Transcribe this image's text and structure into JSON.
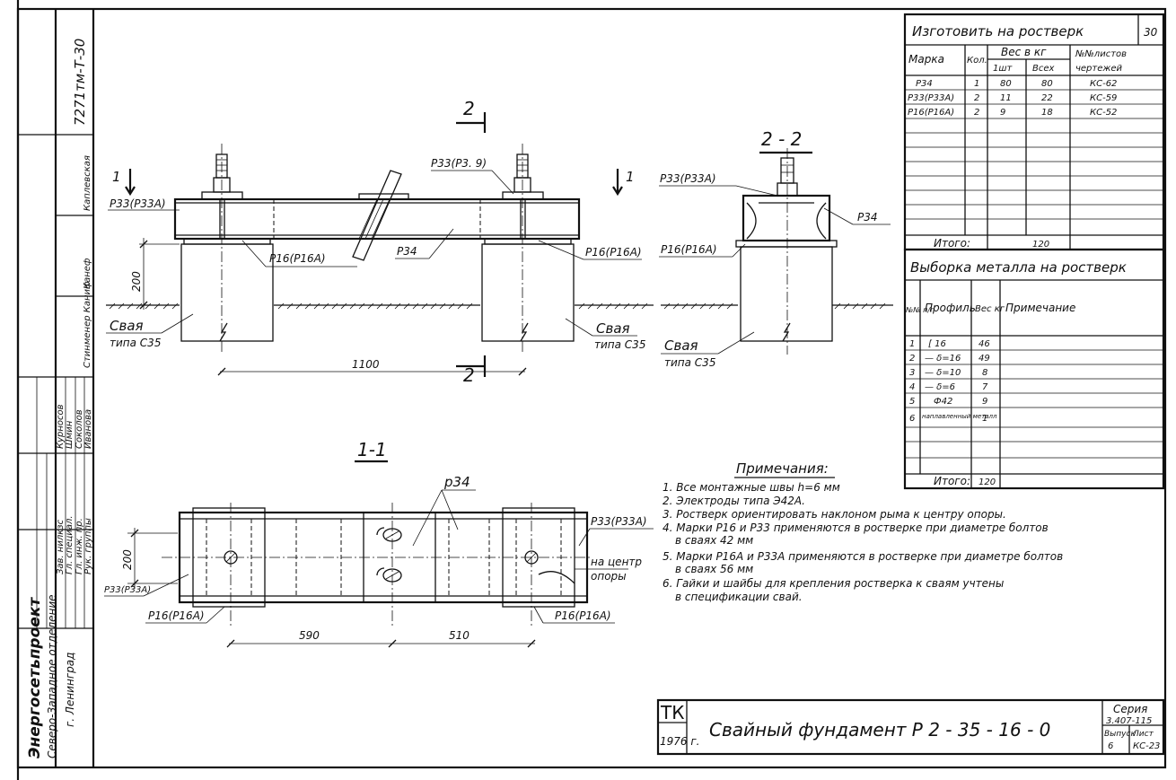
{
  "stamp": {
    "org": "Энергосетьпроект",
    "division": "Северо-Западное отделение",
    "city": "г. Ленинград",
    "archive_no": "7271тм-Т-30",
    "roles": [
      "Зав. нилкзс",
      "Гл. специал.",
      "Гл. инж. пр.",
      "Рук. группы"
    ],
    "names": [
      "Курносов",
      "Шмин",
      "Соколов",
      "Иванова"
    ],
    "vertical_names": [
      "Каплевская",
      "Канеф",
      "Стинменер Каниф"
    ]
  },
  "drawing": {
    "section_2_top": "2",
    "section_2_bottom": "2",
    "section_1_left": "1",
    "section_1_right": "1",
    "view_title_2_2": "2 - 2",
    "view_title_1_1": "1-1",
    "callouts": {
      "p33_left": "Р33(Р33А)",
      "p33_top": "Р33(Р3. 9)",
      "p16_mid": "Р16(Р16А)",
      "p34_mid": "Р34",
      "p16_right": "Р16(Р16А)",
      "pile_left": "Свая",
      "pile_left_type": "типа С35",
      "pile_right": "Свая",
      "pile_right_type": "типа С35",
      "p33_side": "Р33(Р33А)",
      "p34_side": "Р34",
      "p16_side": "Р16(Р16А)",
      "pile_side": "Свая",
      "pile_side_type": "типа С35",
      "p34_plan": "р34",
      "p33_plan_right": "Р33(Р33А)",
      "center_note": "на центр",
      "center_note2": "опоры",
      "p33_plan_left": "Р33(Р33А)",
      "p16_plan_left": "Р16(Р16А)",
      "p16_plan_right": "Р16(Р16А)"
    },
    "dims": {
      "h200": "200",
      "span1100": "1100",
      "plan200": "200",
      "d590": "590",
      "d510": "510"
    }
  },
  "table_parts": {
    "title": "Изготовить на ростверк",
    "sheet_no": "30",
    "headers": {
      "mark": "Марка",
      "qty": "Кол.",
      "weight": "Вес в кг",
      "w_one": "1шт",
      "w_all": "Всех",
      "sheets": "№№листов",
      "sheets2": "чертежей"
    },
    "rows": [
      {
        "mark": "Р34",
        "qty": "1",
        "w1": "80",
        "wall": "80",
        "sheet": "КС-62"
      },
      {
        "mark": "Р33(Р33А)",
        "qty": "2",
        "w1": "11",
        "wall": "22",
        "sheet": "КС-59"
      },
      {
        "mark": "Р16(Р16А)",
        "qty": "2",
        "w1": "9",
        "wall": "18",
        "sheet": "КС-52"
      }
    ],
    "total_label": "Итого:",
    "total": "120"
  },
  "table_metal": {
    "title": "Выборка металла на ростверк",
    "headers": {
      "no": "№№ п/п",
      "profile": "Профиль",
      "weight": "Вес кг",
      "note": "Примечание"
    },
    "rows": [
      {
        "no": "1",
        "profile": "[ 16",
        "weight": "46"
      },
      {
        "no": "2",
        "profile": "— δ=16",
        "weight": "49"
      },
      {
        "no": "3",
        "profile": "— δ=10",
        "weight": "8"
      },
      {
        "no": "4",
        "profile": "— δ=6",
        "weight": "7"
      },
      {
        "no": "5",
        "profile": "Ф42",
        "weight": "9"
      },
      {
        "no": "6",
        "profile": "наплавленный металл",
        "weight": "1"
      }
    ],
    "total_label": "Итого:",
    "total": "120"
  },
  "notes": {
    "title": "Примечания:",
    "lines": [
      "1. Все монтажные швы h=6 мм",
      "2. Электроды типа Э42А.",
      "3. Ростверк ориентировать наклоном рыма к центру опоры.",
      "4. Марки Р16 и Р33 применяются в ростверке при диаметре болтов",
      "в сваях 42 мм",
      "5. Марки Р16А и Р33А применяются в ростверке при диаметре болтов",
      "в сваях 56 мм",
      "6. Гайки и шайбы для крепления ростверка к сваям учтены",
      "в спецификации свай."
    ]
  },
  "title_block": {
    "tk": "ТК",
    "year": "1976 г.",
    "title": "Свайный фундамент Р 2 - 35 - 16 - 0",
    "series_label": "Серия",
    "series": "3.407-115",
    "issue_label": "Выпуск",
    "issue": "6",
    "sheet_label": "Лист",
    "sheet": "КС-23"
  }
}
